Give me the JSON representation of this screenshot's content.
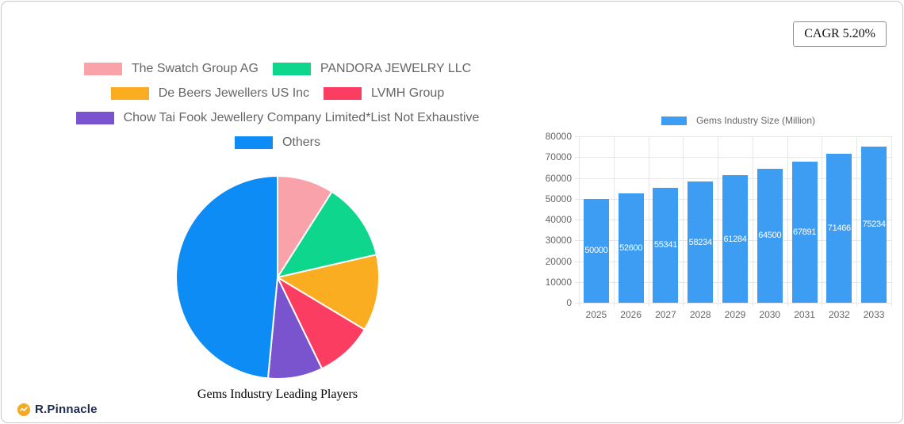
{
  "page": {
    "cagr_label": "CAGR 5.20%"
  },
  "brand": {
    "name": "R.Pinnacle",
    "icon_color": "#F6A821",
    "text_color": "#1D2B4F"
  },
  "chart_data": [
    {
      "type": "pie",
      "title": "Gems Industry Leading Players",
      "labels": [
        "The Swatch Group AG",
        "PANDORA JEWELRY LLC",
        "De Beers Jewellers US Inc",
        "LVMH Group",
        "Chow Tai Fook Jewellery Company Limited*List Not Exhaustive",
        "Others"
      ],
      "values_pct": [
        9,
        12.4,
        12.2,
        9.2,
        8.7,
        48.5
      ],
      "colors": [
        "#F9A2AA",
        "#0FD68D",
        "#FBAD22",
        "#FB3D61",
        "#7A54CE",
        "#0D8CF5"
      ],
      "legend_rows": [
        [
          0,
          1
        ],
        [
          2,
          3
        ],
        [
          4
        ],
        [
          5
        ]
      ],
      "legend_position": "top",
      "slice_border_color": "#FFFFFF",
      "start_angle_deg": 0,
      "direction": "clockwise"
    },
    {
      "type": "bar",
      "legend_label": "Gems Industry Size (Million)",
      "categories": [
        "2025",
        "2026",
        "2027",
        "2028",
        "2029",
        "2030",
        "2031",
        "2032",
        "2033"
      ],
      "values": [
        50000,
        52600,
        55341,
        58234,
        61284,
        64500,
        67891,
        71466,
        75234
      ],
      "bar_color": "#3D9DF3",
      "value_label_color": "#FFFFFF",
      "ylim": [
        0,
        80000
      ],
      "ytick_step": 10000,
      "grid": true,
      "legend_position": "top"
    }
  ]
}
